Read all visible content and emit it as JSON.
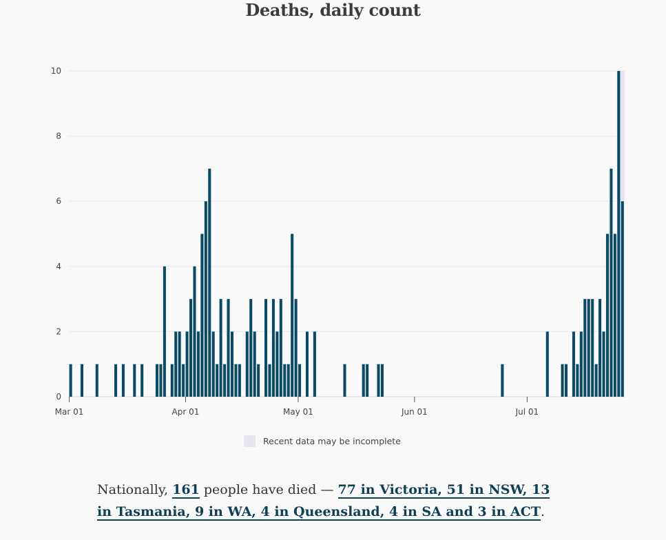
{
  "chart_data": {
    "type": "bar",
    "title": "Deaths, daily count",
    "xlabel": "",
    "ylabel": "",
    "ylim": [
      0,
      10
    ],
    "y_ticks": [
      0,
      2,
      4,
      6,
      8,
      10
    ],
    "x_start_date": "Mar 01",
    "x_tick_labels": [
      {
        "label": "Mar 01",
        "day": 0
      },
      {
        "label": "Apr 01",
        "day": 31
      },
      {
        "label": "May 01",
        "day": 61
      },
      {
        "label": "Jun 01",
        "day": 92
      },
      {
        "label": "Jul 01",
        "day": 122
      }
    ],
    "series": [
      {
        "name": "Deaths",
        "color": "#0b4a66",
        "points": [
          [
            0,
            1
          ],
          [
            3,
            1
          ],
          [
            7,
            1
          ],
          [
            12,
            1
          ],
          [
            14,
            1
          ],
          [
            17,
            1
          ],
          [
            19,
            1
          ],
          [
            23,
            1
          ],
          [
            24,
            1
          ],
          [
            25,
            4
          ],
          [
            27,
            1
          ],
          [
            28,
            2
          ],
          [
            29,
            2
          ],
          [
            30,
            1
          ],
          [
            31,
            2
          ],
          [
            32,
            3
          ],
          [
            33,
            4
          ],
          [
            34,
            2
          ],
          [
            35,
            5
          ],
          [
            36,
            6
          ],
          [
            37,
            7
          ],
          [
            38,
            2
          ],
          [
            39,
            1
          ],
          [
            40,
            3
          ],
          [
            41,
            1
          ],
          [
            42,
            3
          ],
          [
            43,
            2
          ],
          [
            44,
            1
          ],
          [
            45,
            1
          ],
          [
            47,
            2
          ],
          [
            48,
            3
          ],
          [
            49,
            2
          ],
          [
            50,
            1
          ],
          [
            52,
            3
          ],
          [
            53,
            1
          ],
          [
            54,
            3
          ],
          [
            55,
            2
          ],
          [
            56,
            3
          ],
          [
            57,
            1
          ],
          [
            58,
            1
          ],
          [
            59,
            5
          ],
          [
            60,
            3
          ],
          [
            61,
            1
          ],
          [
            63,
            2
          ],
          [
            65,
            2
          ],
          [
            73,
            1
          ],
          [
            78,
            1
          ],
          [
            79,
            1
          ],
          [
            82,
            1
          ],
          [
            83,
            1
          ],
          [
            115,
            1
          ],
          [
            127,
            2
          ],
          [
            131,
            1
          ],
          [
            132,
            1
          ],
          [
            134,
            2
          ],
          [
            135,
            1
          ],
          [
            136,
            2
          ],
          [
            137,
            3
          ],
          [
            138,
            3
          ],
          [
            139,
            3
          ],
          [
            140,
            1
          ],
          [
            141,
            3
          ],
          [
            142,
            2
          ],
          [
            143,
            5
          ],
          [
            144,
            7
          ],
          [
            145,
            5
          ],
          [
            146,
            10
          ],
          [
            147,
            6
          ]
        ]
      }
    ],
    "incomplete_region": {
      "from_day": 146,
      "to_day": 148
    },
    "legend": {
      "label": "Recent data may be incomplete",
      "placement": "bottom-center",
      "color": "#e4e7f1"
    }
  },
  "summary": {
    "prefix": "Nationally, ",
    "total": "161",
    "middle": " people have died — ",
    "breakdown": "77 in Victoria, 51 in NSW, 13 in Tasmania, 9 in WA, 4 in Queensland, 4 in SA and 3 in ACT",
    "suffix": "."
  }
}
